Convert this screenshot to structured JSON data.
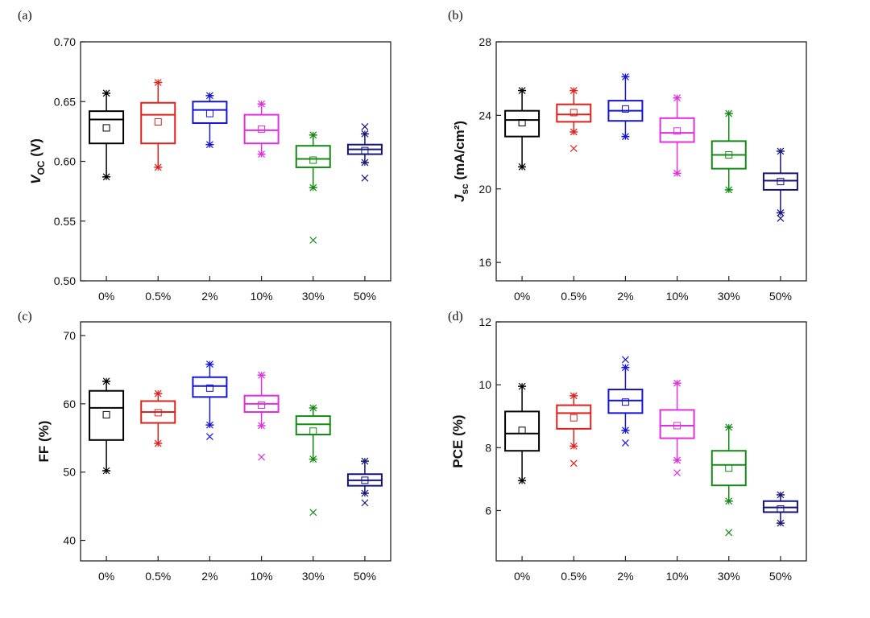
{
  "chart_data": [
    {
      "panel_label": "(a)",
      "type": "box",
      "ylabel": {
        "main": "V",
        "sub": "OC",
        "rest": " (V)"
      },
      "ylim": [
        0.5,
        0.7
      ],
      "yticks": [
        0.5,
        0.55,
        0.6,
        0.65,
        0.7
      ],
      "ytick_labels": [
        "0.50",
        "0.55",
        "0.60",
        "0.65",
        "0.70"
      ],
      "categories": [
        "0%",
        "0.5%",
        "2%",
        "10%",
        "30%",
        "50%"
      ],
      "colors": [
        "#000000",
        "#e0201b",
        "#1515d6",
        "#e02ee0",
        "#138a13",
        "#15157a"
      ],
      "boxes": [
        {
          "q1": 0.615,
          "median": 0.635,
          "q3": 0.642,
          "whisker_low": 0.587,
          "whisker_high": 0.657,
          "mean": 0.628,
          "outliers": []
        },
        {
          "q1": 0.615,
          "median": 0.639,
          "q3": 0.649,
          "whisker_low": 0.595,
          "whisker_high": 0.666,
          "mean": 0.633,
          "outliers": []
        },
        {
          "q1": 0.632,
          "median": 0.643,
          "q3": 0.65,
          "whisker_low": 0.614,
          "whisker_high": 0.655,
          "mean": 0.64,
          "outliers": []
        },
        {
          "q1": 0.615,
          "median": 0.626,
          "q3": 0.639,
          "whisker_low": 0.606,
          "whisker_high": 0.648,
          "mean": 0.627,
          "outliers": []
        },
        {
          "q1": 0.595,
          "median": 0.602,
          "q3": 0.613,
          "whisker_low": 0.578,
          "whisker_high": 0.622,
          "mean": 0.601,
          "outliers": [
            0.534
          ]
        },
        {
          "q1": 0.606,
          "median": 0.61,
          "q3": 0.614,
          "whisker_low": 0.599,
          "whisker_high": 0.623,
          "mean": 0.609,
          "outliers": [
            0.629,
            0.586
          ]
        }
      ]
    },
    {
      "panel_label": "(b)",
      "type": "box",
      "ylabel": {
        "main": "J",
        "sub": "sc",
        "rest": " (mA/cm²)"
      },
      "ylim": [
        15,
        28
      ],
      "yticks": [
        16,
        20,
        24,
        28
      ],
      "ytick_labels": [
        "16",
        "20",
        "24",
        "28"
      ],
      "categories": [
        "0%",
        "0.5%",
        "2%",
        "10%",
        "30%",
        "50%"
      ],
      "colors": [
        "#000000",
        "#e0201b",
        "#1515d6",
        "#e02ee0",
        "#138a13",
        "#15157a"
      ],
      "boxes": [
        {
          "q1": 22.85,
          "median": 23.75,
          "q3": 24.25,
          "whisker_low": 21.2,
          "whisker_high": 25.35,
          "mean": 23.6,
          "outliers": []
        },
        {
          "q1": 23.65,
          "median": 24.05,
          "q3": 24.6,
          "whisker_low": 23.1,
          "whisker_high": 25.35,
          "mean": 24.15,
          "outliers": [
            22.2
          ]
        },
        {
          "q1": 23.7,
          "median": 24.25,
          "q3": 24.8,
          "whisker_low": 22.85,
          "whisker_high": 26.1,
          "mean": 24.35,
          "outliers": []
        },
        {
          "q1": 22.55,
          "median": 23.05,
          "q3": 23.85,
          "whisker_low": 20.85,
          "whisker_high": 24.95,
          "mean": 23.15,
          "outliers": []
        },
        {
          "q1": 21.1,
          "median": 21.85,
          "q3": 22.6,
          "whisker_low": 19.95,
          "whisker_high": 24.1,
          "mean": 21.85,
          "outliers": []
        },
        {
          "q1": 19.95,
          "median": 20.45,
          "q3": 20.85,
          "whisker_low": 18.7,
          "whisker_high": 22.05,
          "mean": 20.4,
          "outliers": [
            18.4
          ]
        }
      ]
    },
    {
      "panel_label": "(c)",
      "type": "box",
      "ylabel": {
        "main": "FF (%)",
        "sub": "",
        "rest": ""
      },
      "ylim": [
        37,
        72
      ],
      "yticks": [
        40,
        50,
        60,
        70
      ],
      "ytick_labels": [
        "40",
        "50",
        "60",
        "70"
      ],
      "categories": [
        "0%",
        "0.5%",
        "2%",
        "10%",
        "30%",
        "50%"
      ],
      "colors": [
        "#000000",
        "#e0201b",
        "#1515d6",
        "#e02ee0",
        "#138a13",
        "#15157a"
      ],
      "boxes": [
        {
          "q1": 54.7,
          "median": 59.4,
          "q3": 61.9,
          "whisker_low": 50.2,
          "whisker_high": 63.3,
          "mean": 58.4,
          "outliers": []
        },
        {
          "q1": 57.2,
          "median": 58.8,
          "q3": 60.4,
          "whisker_low": 54.2,
          "whisker_high": 61.5,
          "mean": 58.7,
          "outliers": []
        },
        {
          "q1": 61.0,
          "median": 62.6,
          "q3": 63.9,
          "whisker_low": 56.9,
          "whisker_high": 65.8,
          "mean": 62.3,
          "outliers": [
            55.2
          ]
        },
        {
          "q1": 58.8,
          "median": 60.0,
          "q3": 61.2,
          "whisker_low": 56.8,
          "whisker_high": 64.2,
          "mean": 59.8,
          "outliers": [
            52.2
          ]
        },
        {
          "q1": 55.5,
          "median": 57.0,
          "q3": 58.2,
          "whisker_low": 51.9,
          "whisker_high": 59.4,
          "mean": 56.0,
          "outliers": [
            44.1
          ]
        },
        {
          "q1": 48.0,
          "median": 48.8,
          "q3": 49.7,
          "whisker_low": 46.9,
          "whisker_high": 51.6,
          "mean": 48.8,
          "outliers": [
            45.5
          ]
        }
      ]
    },
    {
      "panel_label": "(d)",
      "type": "box",
      "ylabel": {
        "main": "PCE (%)",
        "sub": "",
        "rest": ""
      },
      "ylim": [
        4.4,
        12
      ],
      "yticks": [
        6,
        8,
        10,
        12
      ],
      "ytick_labels": [
        "6",
        "8",
        "10",
        "12"
      ],
      "categories": [
        "0%",
        "0.5%",
        "2%",
        "10%",
        "30%",
        "50%"
      ],
      "colors": [
        "#000000",
        "#e0201b",
        "#1515d6",
        "#e02ee0",
        "#138a13",
        "#15157a"
      ],
      "boxes": [
        {
          "q1": 7.9,
          "median": 8.45,
          "q3": 9.15,
          "whisker_low": 6.95,
          "whisker_high": 9.95,
          "mean": 8.55,
          "outliers": []
        },
        {
          "q1": 8.6,
          "median": 9.1,
          "q3": 9.35,
          "whisker_low": 8.05,
          "whisker_high": 9.65,
          "mean": 8.95,
          "outliers": [
            7.5
          ]
        },
        {
          "q1": 9.1,
          "median": 9.5,
          "q3": 9.85,
          "whisker_low": 8.55,
          "whisker_high": 10.55,
          "mean": 9.45,
          "outliers": [
            10.8,
            8.15
          ]
        },
        {
          "q1": 8.3,
          "median": 8.7,
          "q3": 9.2,
          "whisker_low": 7.6,
          "whisker_high": 10.05,
          "mean": 8.7,
          "outliers": [
            7.2
          ]
        },
        {
          "q1": 6.8,
          "median": 7.45,
          "q3": 7.9,
          "whisker_low": 6.3,
          "whisker_high": 8.65,
          "mean": 7.35,
          "outliers": [
            5.3
          ]
        },
        {
          "q1": 5.95,
          "median": 6.1,
          "q3": 6.3,
          "whisker_low": 5.6,
          "whisker_high": 6.5,
          "mean": 6.05,
          "outliers": []
        }
      ]
    }
  ]
}
